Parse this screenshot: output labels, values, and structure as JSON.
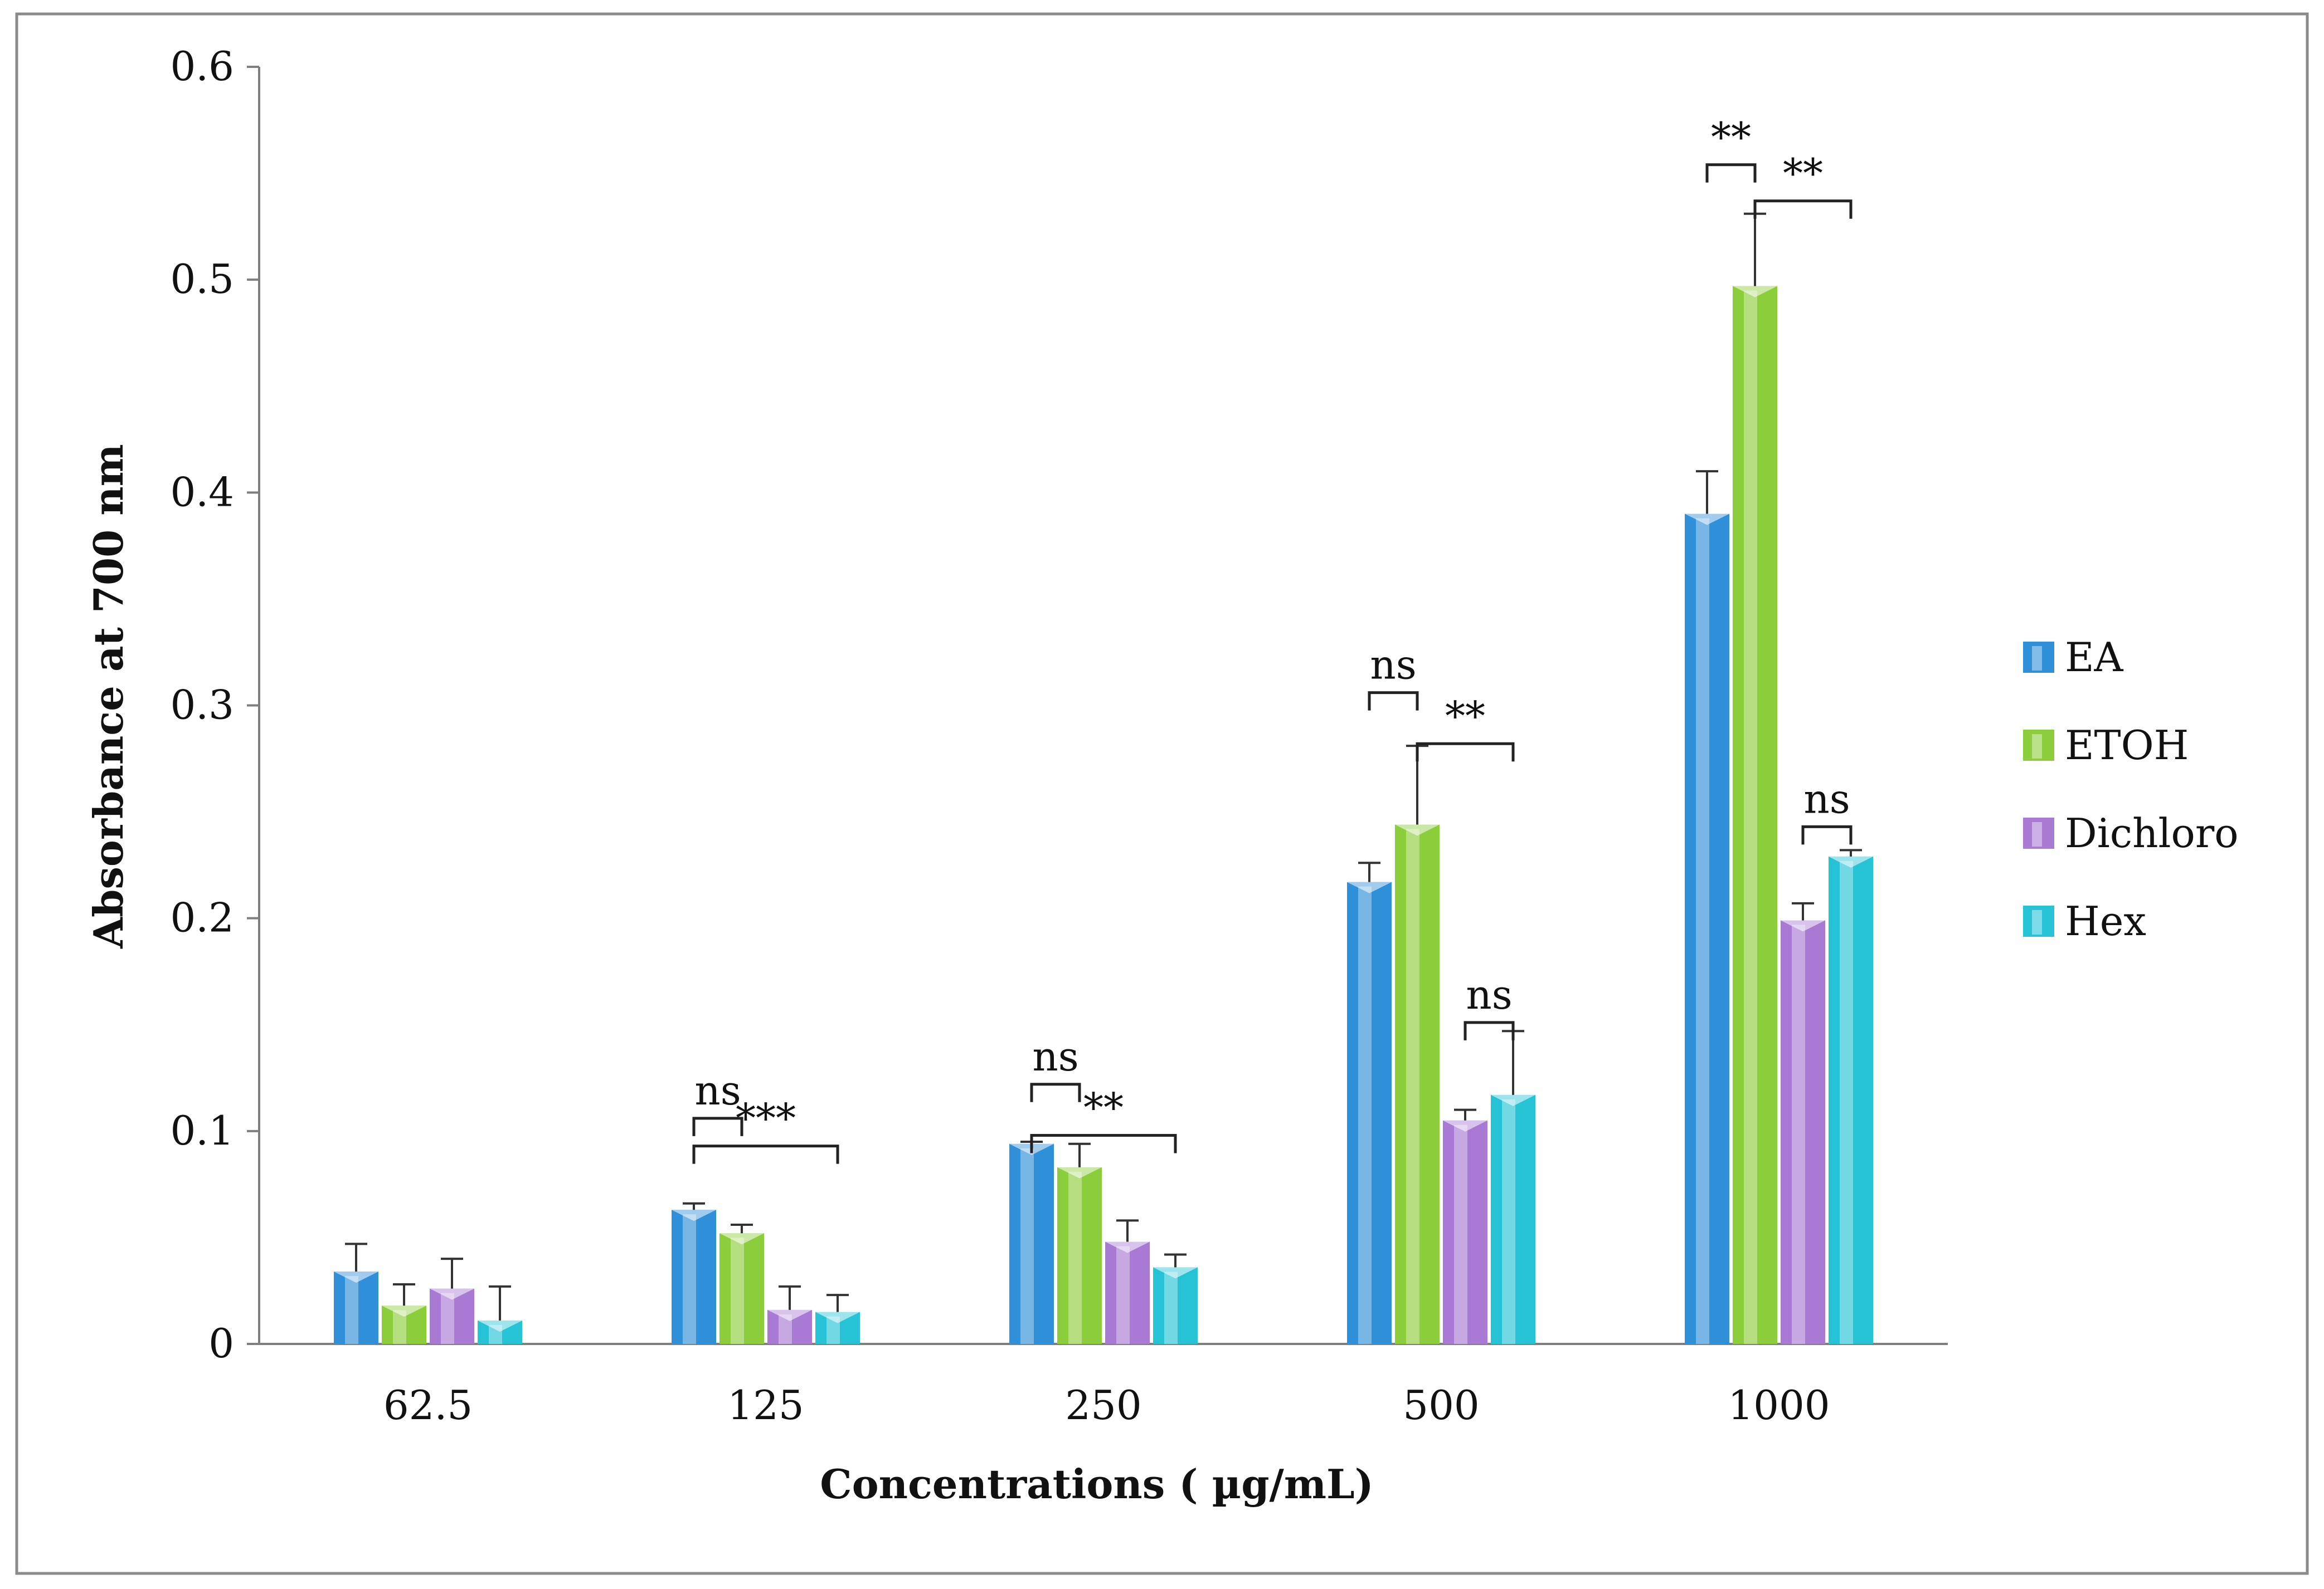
{
  "chart_data": {
    "type": "bar",
    "title": "",
    "xlabel": "Concentrations ( µg/mL)",
    "ylabel": "Absorbance at 700 nm",
    "ylim": [
      0,
      0.6
    ],
    "yticks": [
      0,
      0.1,
      0.2,
      0.3,
      0.4,
      0.5,
      0.6
    ],
    "ytick_labels": [
      "0",
      "0.1",
      "0.2",
      "0.3",
      "0.4",
      "0.5",
      "0.6"
    ],
    "grid": false,
    "legend_position": "right",
    "categories": [
      "62.5",
      "125",
      "250",
      "500",
      "1000"
    ],
    "series": [
      {
        "name": "EA",
        "color": "#2f8fd8",
        "values": [
          0.034,
          0.063,
          0.094,
          0.217,
          0.39
        ],
        "errors": [
          0.013,
          0.003,
          0.001,
          0.009,
          0.02
        ]
      },
      {
        "name": "ETOH",
        "color": "#8ccd3c",
        "values": [
          0.018,
          0.052,
          0.083,
          0.244,
          0.497
        ],
        "errors": [
          0.01,
          0.004,
          0.011,
          0.037,
          0.034
        ]
      },
      {
        "name": "Dichloro",
        "color": "#a97ad4",
        "values": [
          0.026,
          0.016,
          0.048,
          0.105,
          0.199
        ],
        "errors": [
          0.014,
          0.011,
          0.01,
          0.005,
          0.008
        ]
      },
      {
        "name": "Hex",
        "color": "#26c3d6",
        "values": [
          0.011,
          0.015,
          0.036,
          0.117,
          0.229
        ],
        "errors": [
          0.016,
          0.008,
          0.006,
          0.03,
          0.003
        ]
      }
    ],
    "annotations": [
      {
        "category": "125",
        "from_series": 0,
        "to_series": 1,
        "label": "ns",
        "level": 0.106
      },
      {
        "category": "125",
        "from_series": 0,
        "to_series": 3,
        "label": "***",
        "level": 0.093
      },
      {
        "category": "250",
        "from_series": 0,
        "to_series": 1,
        "label": "ns",
        "level": 0.122
      },
      {
        "category": "250",
        "from_series": 0,
        "to_series": 3,
        "label": "**",
        "level": 0.098
      },
      {
        "category": "500",
        "from_series": 0,
        "to_series": 1,
        "label": "ns",
        "level": 0.306
      },
      {
        "category": "500",
        "from_series": 1,
        "to_series": 3,
        "label": "**",
        "level": 0.282
      },
      {
        "category": "500",
        "from_series": 2,
        "to_series": 3,
        "label": "ns",
        "level": 0.151
      },
      {
        "category": "1000",
        "from_series": 0,
        "to_series": 1,
        "label": "**",
        "level": 0.554
      },
      {
        "category": "1000",
        "from_series": 1,
        "to_series": 3,
        "label": "**",
        "level": 0.537
      },
      {
        "category": "1000",
        "from_series": 2,
        "to_series": 3,
        "label": "ns",
        "level": 0.243
      }
    ]
  }
}
